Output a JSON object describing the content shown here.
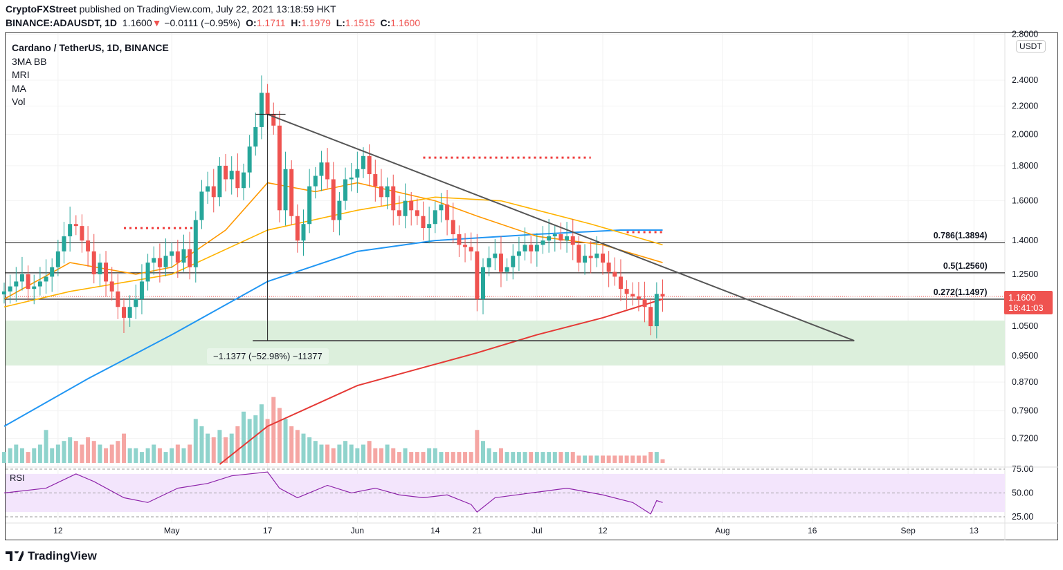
{
  "header": {
    "publisher": "CryptoFXStreet",
    "published_text": "published on TradingView.com, July 22, 2021 13:18:59 HKT",
    "symbol": "BINANCE:ADAUSDT, 1D",
    "last": "1.1600",
    "change": "−0.0111 (−0.95%)",
    "o_label": "O:",
    "o": "1.1711",
    "h_label": "H:",
    "h": "1.1979",
    "l_label": "L:",
    "l": "1.1515",
    "c_label": "C:",
    "c": "1.1600"
  },
  "legend": {
    "title": "Cardano / TetherUS, 1D, BINANCE",
    "indicators": [
      "3MA BB",
      "MRI",
      "MA",
      "Vol"
    ]
  },
  "currency": "USDT",
  "price_tag": {
    "price": "1.1600",
    "countdown": "18:41:03"
  },
  "measure_label": "−1.1377 (−52.98%) −11377",
  "rsi_label": "RSI",
  "brand": "TradingView",
  "colors": {
    "up": "#26a69a",
    "down": "#ef5350",
    "ma_blue": "#2196f3",
    "ma_red": "#e53935",
    "ma_orange": "#ff9800",
    "ma_yellow": "#ffb300",
    "trend": "#555555",
    "zone": "#dcefdc"
  },
  "chart_data": {
    "type": "candlestick",
    "start_date": "2021-04-03",
    "closes": [
      1.18,
      1.2,
      1.22,
      1.25,
      1.19,
      1.2,
      1.22,
      1.24,
      1.28,
      1.35,
      1.42,
      1.48,
      1.47,
      1.4,
      1.35,
      1.25,
      1.3,
      1.22,
      1.18,
      1.12,
      1.08,
      1.12,
      1.15,
      1.22,
      1.3,
      1.32,
      1.28,
      1.33,
      1.35,
      1.3,
      1.36,
      1.28,
      1.5,
      1.65,
      1.68,
      1.62,
      1.8,
      1.72,
      1.77,
      1.67,
      1.76,
      1.92,
      2.05,
      2.3,
      2.14,
      2.06,
      1.55,
      1.78,
      1.52,
      1.4,
      1.48,
      1.68,
      1.74,
      1.82,
      1.72,
      1.5,
      1.6,
      1.72,
      1.73,
      1.78,
      1.86,
      1.75,
      1.68,
      1.62,
      1.68,
      1.55,
      1.52,
      1.6,
      1.55,
      1.52,
      1.46,
      1.48,
      1.55,
      1.58,
      1.5,
      1.43,
      1.38,
      1.37,
      1.35,
      1.15,
      1.28,
      1.32,
      1.34,
      1.26,
      1.28,
      1.33,
      1.35,
      1.38,
      1.35,
      1.38,
      1.4,
      1.42,
      1.43,
      1.4,
      1.42,
      1.38,
      1.3,
      1.33,
      1.32,
      1.34,
      1.3,
      1.26,
      1.24,
      1.19,
      1.17,
      1.16,
      1.15,
      1.12,
      1.05,
      1.17,
      1.16
    ],
    "volumes": [
      3,
      4,
      5,
      4,
      3,
      4,
      5,
      9,
      4,
      5,
      6,
      7,
      6,
      5,
      7,
      6,
      5,
      4,
      5,
      6,
      8,
      4,
      4,
      3,
      4,
      5,
      4,
      3,
      4,
      5,
      4,
      5,
      12,
      10,
      8,
      7,
      9,
      7,
      8,
      10,
      14,
      12,
      13,
      16,
      12,
      18,
      15,
      12,
      10,
      9,
      8,
      7,
      6,
      5,
      5,
      4,
      5,
      6,
      5,
      4,
      5,
      6,
      4,
      4,
      5,
      4,
      3,
      4,
      3,
      3,
      3,
      4,
      4,
      3,
      3,
      3,
      3,
      3,
      3,
      9,
      6,
      4,
      3,
      4,
      3,
      3,
      3,
      3,
      3,
      3,
      3,
      3,
      3,
      3,
      3,
      3,
      2,
      2,
      2,
      2,
      2,
      2,
      2,
      2,
      2,
      2,
      2,
      2,
      3,
      3,
      1
    ],
    "ma_blue": [
      [
        0,
        0.75
      ],
      [
        14,
        0.88
      ],
      [
        28,
        1.02
      ],
      [
        44,
        1.22
      ],
      [
        59,
        1.35
      ],
      [
        72,
        1.4
      ],
      [
        89,
        1.43
      ],
      [
        103,
        1.45
      ],
      [
        110,
        1.45
      ]
    ],
    "ma_red": [
      [
        36,
        0.66
      ],
      [
        44,
        0.75
      ],
      [
        59,
        0.86
      ],
      [
        79,
        0.96
      ],
      [
        89,
        1.02
      ],
      [
        100,
        1.08
      ],
      [
        110,
        1.15
      ]
    ],
    "ma_orange": [
      [
        0,
        1.15
      ],
      [
        11,
        1.3
      ],
      [
        22,
        1.25
      ],
      [
        28,
        1.28
      ],
      [
        37,
        1.45
      ],
      [
        44,
        1.7
      ],
      [
        52,
        1.65
      ],
      [
        59,
        1.7
      ],
      [
        72,
        1.6
      ],
      [
        79,
        1.52
      ],
      [
        89,
        1.42
      ],
      [
        100,
        1.38
      ],
      [
        110,
        1.3
      ]
    ],
    "ma_yellow": [
      [
        0,
        1.12
      ],
      [
        11,
        1.18
      ],
      [
        28,
        1.25
      ],
      [
        44,
        1.45
      ],
      [
        59,
        1.55
      ],
      [
        72,
        1.62
      ],
      [
        83,
        1.6
      ],
      [
        98,
        1.48
      ],
      [
        110,
        1.38
      ]
    ],
    "rsi": [
      [
        0,
        50
      ],
      [
        7,
        55
      ],
      [
        12,
        70
      ],
      [
        15,
        62
      ],
      [
        20,
        45
      ],
      [
        24,
        40
      ],
      [
        29,
        55
      ],
      [
        34,
        60
      ],
      [
        38,
        68
      ],
      [
        44,
        72
      ],
      [
        46,
        55
      ],
      [
        49,
        45
      ],
      [
        54,
        58
      ],
      [
        58,
        50
      ],
      [
        62,
        55
      ],
      [
        66,
        48
      ],
      [
        70,
        45
      ],
      [
        74,
        48
      ],
      [
        78,
        38
      ],
      [
        79,
        30
      ],
      [
        82,
        45
      ],
      [
        88,
        50
      ],
      [
        94,
        55
      ],
      [
        100,
        48
      ],
      [
        105,
        40
      ],
      [
        108,
        28
      ],
      [
        109,
        42
      ],
      [
        110,
        40
      ]
    ],
    "fib_levels": [
      {
        "label": "0.786(1.3894)",
        "price": 1.3894
      },
      {
        "label": "0.5(1.2560)",
        "price": 1.256
      },
      {
        "label": "0.272(1.1497)",
        "price": 1.1497
      }
    ],
    "trendline": [
      [
        44,
        2.14
      ],
      [
        142,
        1.0
      ]
    ],
    "support_line": [
      [
        45,
        1.0
      ],
      [
        142,
        1.0
      ]
    ],
    "support_zone": [
      0.92,
      1.07
    ],
    "resistance_dots": [
      [
        [
          70,
          98
        ],
        1.85
      ],
      [
        [
          20,
          32
        ],
        1.46
      ],
      [
        [
          104,
          110
        ],
        1.44
      ]
    ],
    "y_ticks": [
      "2.8000",
      "2.4000",
      "2.2000",
      "2.0000",
      "1.8000",
      "1.6000",
      "1.4000",
      "1.2500",
      "1.0500",
      "0.9500",
      "0.8700",
      "0.7900",
      "0.7200"
    ],
    "rsi_ticks": [
      "75.00",
      "50.00",
      "25.00"
    ],
    "x_ticks": [
      "12",
      "May",
      "17",
      "Jun",
      "14",
      "21",
      "Jul",
      "12",
      "Aug",
      "16",
      "Sep",
      "13"
    ],
    "x_tick_days": [
      9,
      28,
      44,
      59,
      72,
      79,
      89,
      100,
      120,
      135,
      151,
      162
    ]
  }
}
